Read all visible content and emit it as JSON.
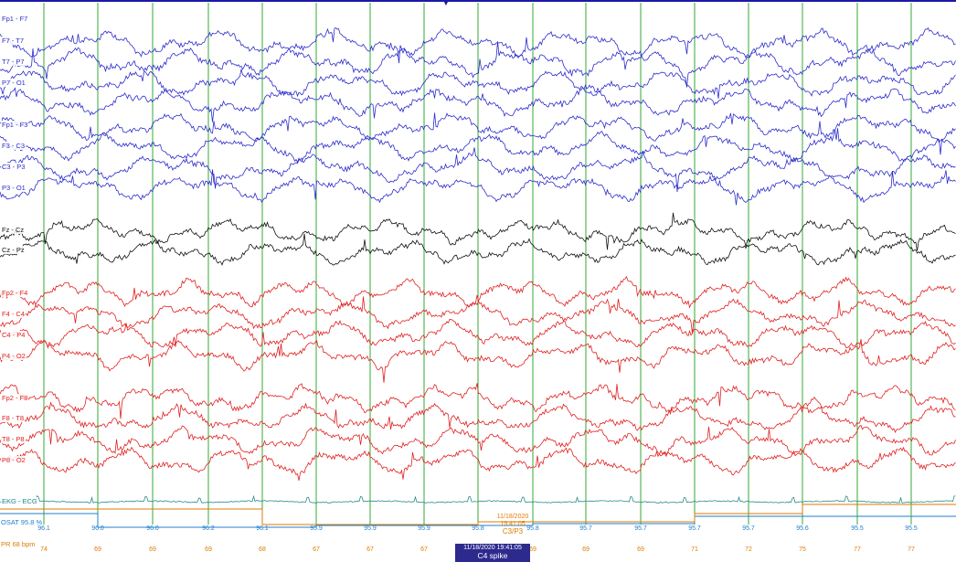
{
  "colors": {
    "left_temporal": "#2c2ccc",
    "left_parasagittal": "#2c2ccc",
    "midline": "#111111",
    "right_parasagittal": "#e02020",
    "right_temporal": "#e02020",
    "ekg": "#2a8a8a",
    "osat": "#1f7fd0",
    "pr": "#e07b00",
    "gridline": "#33aa33",
    "top_border": "#1a1aa6"
  },
  "channels": [
    {
      "label": "Fp1 - F7",
      "group": "left_temporal"
    },
    {
      "label": "F7 - T7",
      "group": "left_temporal"
    },
    {
      "label": "T7 - P7",
      "group": "left_temporal"
    },
    {
      "label": "P7 - O1",
      "group": "left_temporal"
    },
    {
      "label": "Fp1 - F3",
      "group": "left_parasagittal"
    },
    {
      "label": "F3 - C3",
      "group": "left_parasagittal"
    },
    {
      "label": "C3 - P3",
      "group": "left_parasagittal"
    },
    {
      "label": "P3 - O1",
      "group": "left_parasagittal"
    },
    {
      "label": "Fz - Cz",
      "group": "midline"
    },
    {
      "label": "Cz - Pz",
      "group": "midline"
    },
    {
      "label": "Fp2 - F4",
      "group": "right_parasagittal"
    },
    {
      "label": "F4 - C4",
      "group": "right_parasagittal"
    },
    {
      "label": "C4 - P4",
      "group": "right_parasagittal"
    },
    {
      "label": "P4 - O2",
      "group": "right_parasagittal"
    },
    {
      "label": "Fp2 - F8",
      "group": "right_temporal"
    },
    {
      "label": "F8 - T8",
      "group": "right_temporal"
    },
    {
      "label": "T8 - P8",
      "group": "right_temporal"
    },
    {
      "label": "P8 - O2",
      "group": "right_temporal"
    },
    {
      "label": "EKG - ECG",
      "group": "ekg"
    }
  ],
  "osat": {
    "label": "OSAT 95.8 %",
    "values": [
      "96.1",
      "96.0",
      "96.0",
      "96.2",
      "96.1",
      "95.9",
      "95.9",
      "95.9",
      "95.8",
      "95.8",
      "95.7",
      "95.7",
      "95.7",
      "95.7",
      "95.6",
      "95.5",
      "95.5"
    ]
  },
  "pr": {
    "label": "PR  68 bpm",
    "values": [
      "74",
      "69",
      "69",
      "69",
      "68",
      "67",
      "67",
      "67",
      "68",
      "69",
      "69",
      "69",
      "71",
      "72",
      "75",
      "77",
      "77"
    ]
  },
  "events": {
    "c3p3": {
      "timestamp": "11/18/2020 19:41:05",
      "label": "C3/P3"
    },
    "c4spike": {
      "timestamp": "11/18/2020 19:41:05",
      "label": "C4 spike"
    }
  },
  "top_caret": "▼"
}
